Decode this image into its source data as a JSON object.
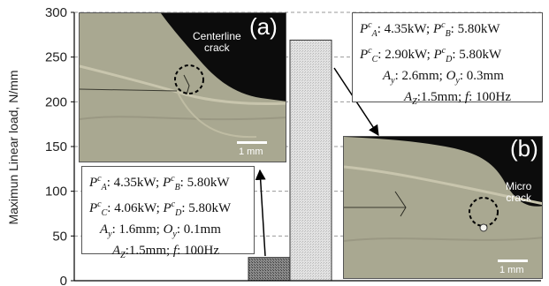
{
  "chart_data": {
    "type": "bar",
    "categories": [
      "(a)",
      "(b)"
    ],
    "values": [
      26,
      269
    ],
    "ylabel": "Maximun Linear load, N/mm",
    "ylim": [
      0,
      300
    ],
    "yticks": [
      0,
      50,
      100,
      150,
      200,
      250,
      300
    ],
    "grid": "horizontal dashed",
    "legend": "none"
  },
  "colors": {
    "bar_a": "#6e6e6e",
    "bar_b": "#d8d8d8",
    "grid": "#9a9a9a"
  },
  "panel_a": {
    "label": "(a)",
    "note_line1": "Centerline",
    "note_line2": "crack",
    "scale": "1 mm",
    "params": {
      "pa": "4.35kW",
      "pb": "5.80kW",
      "pc": "4.06kW",
      "pd": "5.80kW",
      "ay": "1.6mm",
      "oy": "0.1mm",
      "az": "1.5mm",
      "f": "100Hz"
    }
  },
  "panel_b": {
    "label": "(b)",
    "note_line1": "Micro",
    "note_line2": "crack",
    "scale": "1 mm",
    "params": {
      "pa": "4.35kW",
      "pb": "5.80kW",
      "pc": "2.90kW",
      "pd": "5.80kW",
      "ay": "2.6mm",
      "oy": "0.3mm",
      "az": "1.5mm",
      "f": "100Hz"
    }
  }
}
